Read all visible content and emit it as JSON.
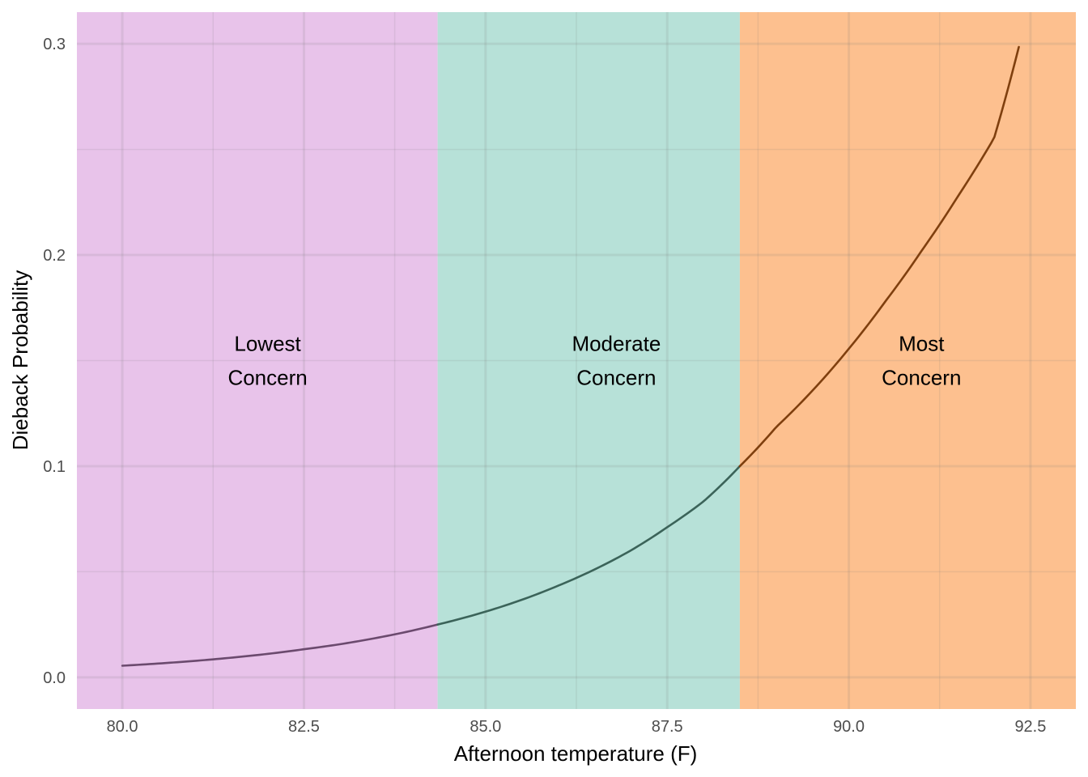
{
  "chart_data": {
    "type": "line",
    "title": "",
    "xlabel": "Afternoon temperature (F)",
    "ylabel": "Dieback Probability",
    "xlim": [
      79.375,
      93.125
    ],
    "ylim": [
      -0.015,
      0.315
    ],
    "x_ticks": [
      80.0,
      82.5,
      85.0,
      87.5,
      90.0,
      92.5
    ],
    "x_tick_labels": [
      "80.0",
      "82.5",
      "85.0",
      "87.5",
      "90.0",
      "92.5"
    ],
    "y_ticks": [
      0.0,
      0.1,
      0.2,
      0.3
    ],
    "y_tick_labels": [
      "0.0",
      "0.1",
      "0.2",
      "0.3"
    ],
    "grid": true,
    "zones": [
      {
        "label_line1": "Lowest",
        "label_line2": "Concern",
        "x_start": 79.375,
        "x_end": 84.34,
        "label_x": 82.0,
        "color": "#e8c3ea",
        "line_color": "#6b4a6e"
      },
      {
        "label_line1": "Moderate",
        "label_line2": "Concern",
        "x_start": 84.34,
        "x_end": 88.5,
        "label_x": 86.8,
        "color": "#b7e1d8",
        "line_color": "#3b6359"
      },
      {
        "label_line1": "Most",
        "label_line2": "Concern",
        "x_start": 88.5,
        "x_end": 93.125,
        "label_x": 91.0,
        "color": "#fdc08f",
        "line_color": "#7f3f0e"
      }
    ],
    "zone_label_y": [
      0.158,
      0.142
    ],
    "series": [
      {
        "x": [
          80.0,
          81.0,
          82.0,
          82.5,
          83.0,
          84.0,
          84.34,
          85.0,
          86.0,
          87.0,
          87.5,
          88.0,
          88.5,
          89.0,
          89.5,
          90.0,
          90.5,
          91.0,
          91.5,
          92.0,
          92.34
        ],
        "values": [
          0.0055,
          0.0078,
          0.0111,
          0.0133,
          0.0157,
          0.0222,
          0.025,
          0.0311,
          0.0434,
          0.0601,
          0.0711,
          0.0833,
          0.1,
          0.1185,
          0.1358,
          0.1556,
          0.1779,
          0.2019,
          0.2277,
          0.2554,
          0.2985
        ]
      }
    ]
  }
}
